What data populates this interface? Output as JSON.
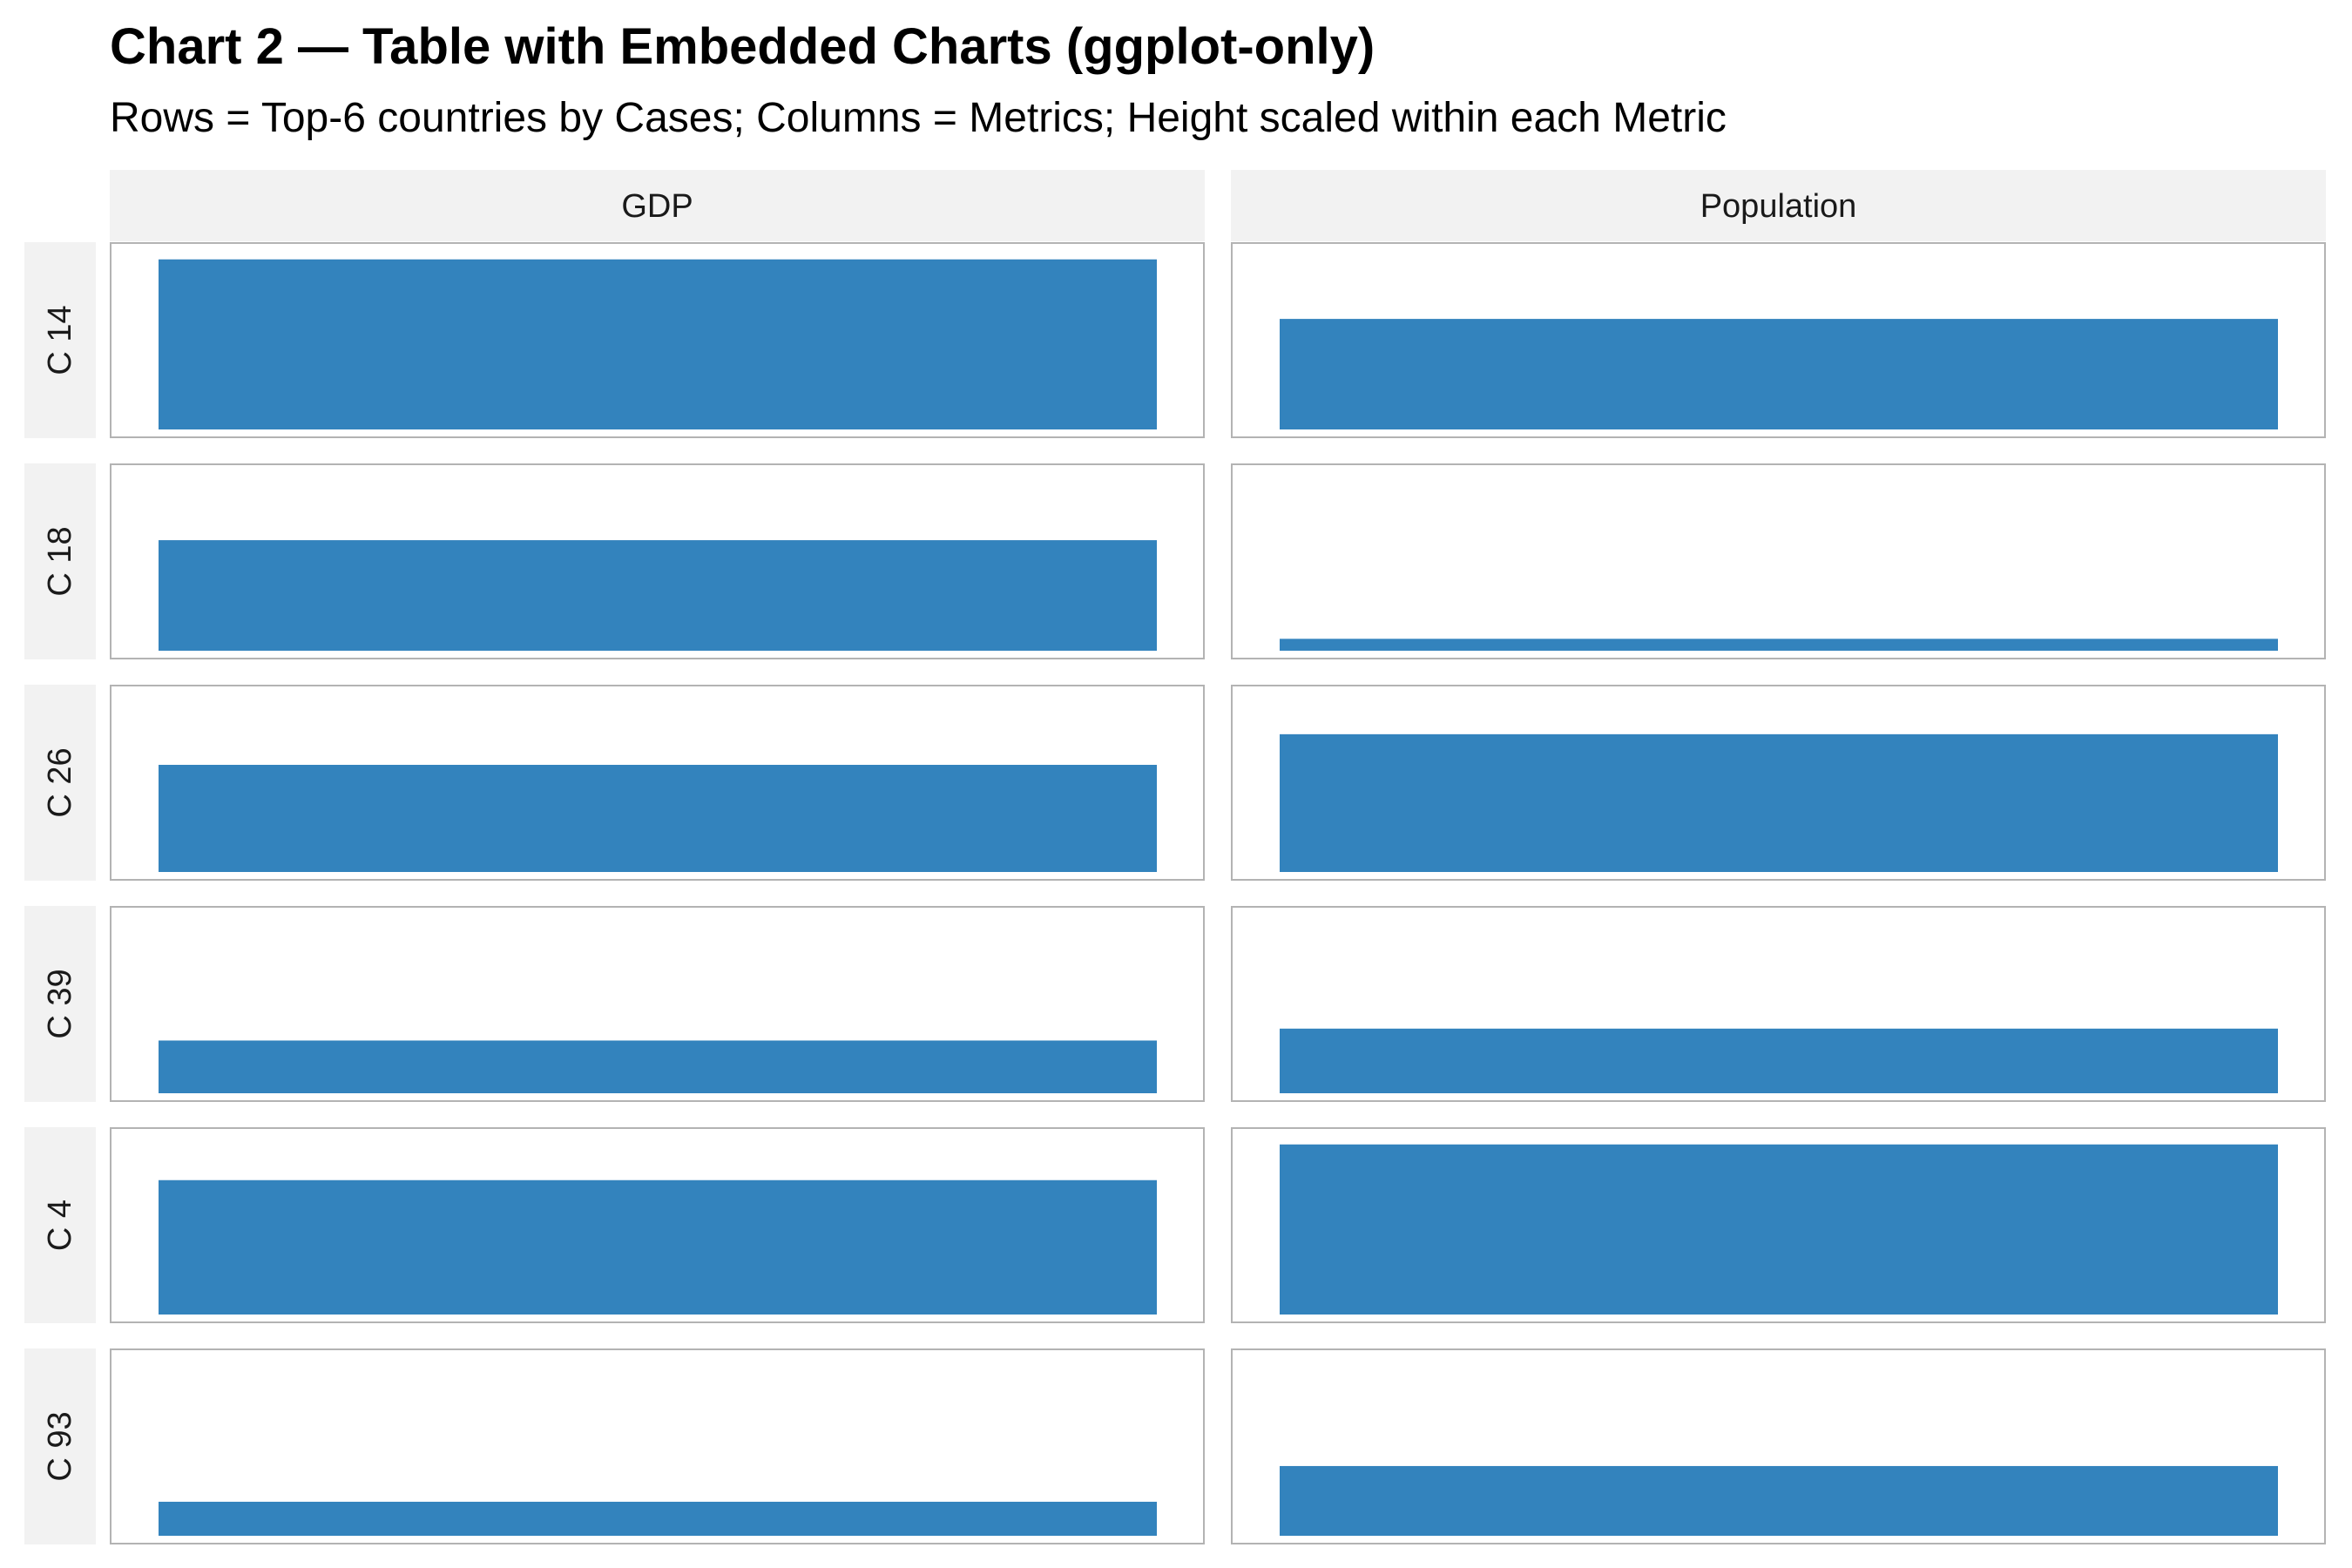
{
  "chart_data": {
    "type": "bar",
    "title": "Chart 2 — Table with Embedded Charts (ggplot-only)",
    "subtitle": "Rows = Top-6 countries by Cases; Columns = Metrics; Height scaled within each Metric",
    "columns": [
      "GDP",
      "Population"
    ],
    "rows": [
      "C 14",
      "C 18",
      "C 26",
      "C 39",
      "C 4",
      "C 93"
    ],
    "values": {
      "GDP": [
        1.0,
        0.65,
        0.63,
        0.31,
        0.79,
        0.2
      ],
      "Population": [
        0.65,
        0.07,
        0.81,
        0.38,
        1.0,
        0.41
      ]
    },
    "ylim": [
      0,
      1.05
    ],
    "scale": "height scaled within each metric (max = 1)",
    "colors": {
      "bar": "#3383bd",
      "strip_bg": "#f2f2f2",
      "panel_border": "#b3b3b3",
      "strip_text": "#1a1a1a"
    }
  }
}
